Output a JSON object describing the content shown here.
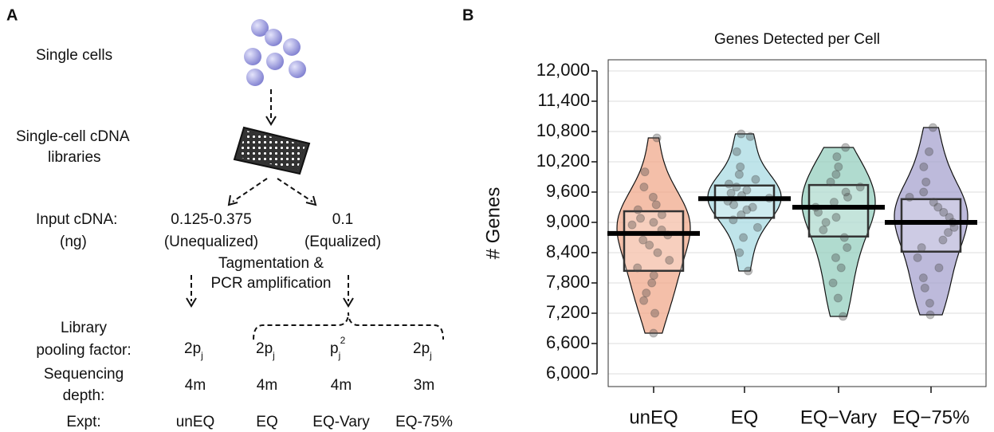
{
  "panel_a": {
    "label": "A",
    "single_cells": "Single cells",
    "libraries": [
      "Single-cell cDNA",
      "libraries"
    ],
    "input_label": [
      "Input cDNA:",
      "(ng)"
    ],
    "unequalized": [
      "0.125-0.375",
      "(Unequalized)"
    ],
    "equalized": [
      "0.1",
      "(Equalized)"
    ],
    "tagmentation": [
      "Tagmentation &",
      "PCR amplification"
    ],
    "pooling_label": [
      "Library",
      "pooling factor:"
    ],
    "depth_label": [
      "Sequencing",
      "depth:"
    ],
    "expt_label": "Expt:",
    "pooling": [
      {
        "base": "2p",
        "sub": "j"
      },
      {
        "base": "2p",
        "sub": "j"
      },
      {
        "base": "p",
        "sub": "j",
        "sup": "2"
      },
      {
        "base": "2p",
        "sub": "j"
      }
    ],
    "depth": [
      "4m",
      "4m",
      "4m",
      "3m"
    ],
    "expt": [
      "unEQ",
      "EQ",
      "EQ-Vary",
      "EQ-75%"
    ]
  },
  "panel_b_label": "B",
  "chart_data": {
    "type": "pirate",
    "title": "Genes Detected per Cell",
    "y_label": "# Genes",
    "categories": [
      "unEQ",
      "EQ",
      "EQ−Vary",
      "EQ−75%"
    ],
    "groups": [
      {
        "color": "#f0a98c",
        "mean": 8780,
        "box": [
          8040,
          9220
        ],
        "points": [
          6805,
          7200,
          7450,
          7600,
          7800,
          7950,
          8100,
          8250,
          8400,
          8550,
          8650,
          8750,
          8850,
          8950,
          9000,
          9080,
          9150,
          9250,
          9350,
          9500,
          9700,
          10000,
          10674
        ]
      },
      {
        "color": "#a9dbe3",
        "mean": 9470,
        "box": [
          9090,
          9730
        ],
        "points": [
          8037,
          8400,
          8700,
          8900,
          9050,
          9150,
          9250,
          9300,
          9350,
          9420,
          9480,
          9530,
          9580,
          9640,
          9700,
          9760,
          9850,
          9950,
          10100,
          10400,
          10700,
          10753
        ]
      },
      {
        "color": "#95cfbf",
        "mean": 9300,
        "box": [
          8720,
          9740
        ],
        "points": [
          7137,
          7500,
          7800,
          8100,
          8300,
          8500,
          8700,
          8850,
          9000,
          9100,
          9200,
          9300,
          9400,
          9500,
          9600,
          9700,
          9800,
          9950,
          10100,
          10300,
          10484
        ]
      },
      {
        "color": "#a7a3cf",
        "mean": 9000,
        "box": [
          8420,
          9460
        ],
        "points": [
          7168,
          7400,
          7700,
          7900,
          8100,
          8300,
          8500,
          8650,
          8800,
          8900,
          9000,
          9100,
          9200,
          9300,
          9400,
          9500,
          9600,
          9800,
          10100,
          10400,
          10879
        ]
      }
    ],
    "ylim": [
      5747,
      12221
    ],
    "yticks": [
      {
        "value": 6000,
        "label": "6,000"
      },
      {
        "value": 6600,
        "label": "6,600"
      },
      {
        "value": 7200,
        "label": "7,200"
      },
      {
        "value": 7800,
        "label": "7,800"
      },
      {
        "value": 8400,
        "label": "8,400"
      },
      {
        "value": 9000,
        "label": "9,000"
      },
      {
        "value": 9600,
        "label": "9,600"
      },
      {
        "value": 10200,
        "label": "10,200"
      },
      {
        "value": 10800,
        "label": "10,800"
      },
      {
        "value": 11400,
        "label": "11,400"
      },
      {
        "value": 12000,
        "label": "12,000"
      }
    ],
    "grid": true
  }
}
